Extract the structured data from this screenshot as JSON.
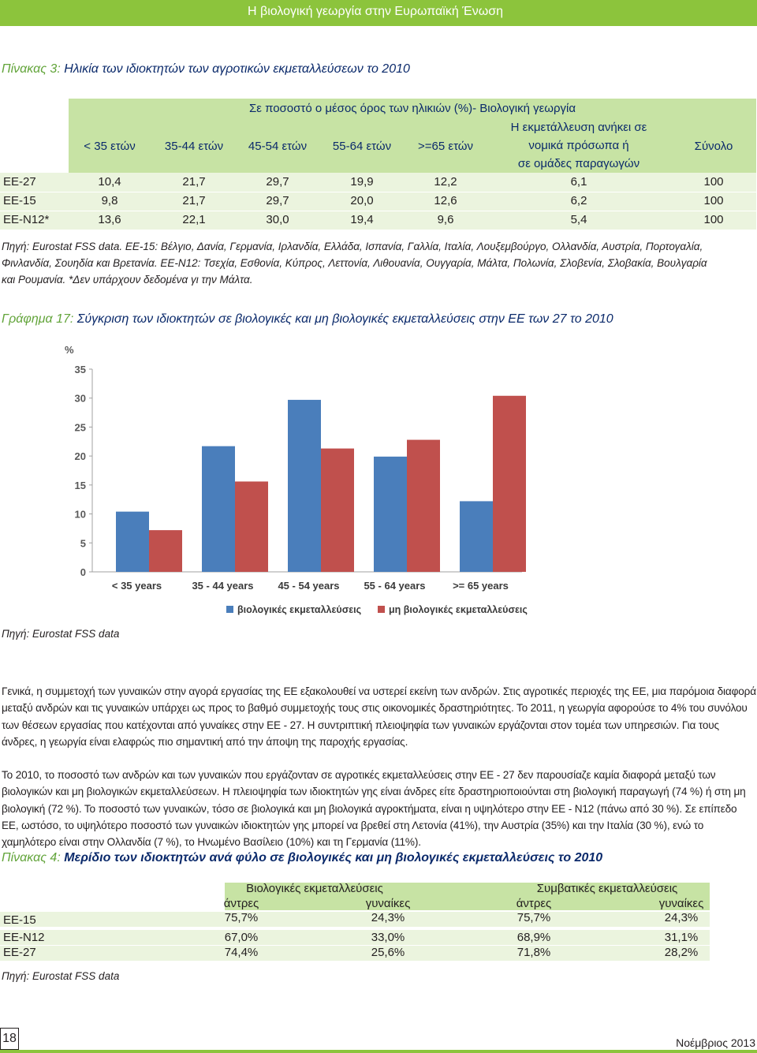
{
  "header": {
    "title": "Η βιολογική γεωργία στην Ευρωπαϊκή Ένωση"
  },
  "table3": {
    "caption_num": "Πίνακας 3:",
    "caption_text": "Ηλικία των ιδιοκτητών των αγροτικών εκμεταλλεύσεων το 2010",
    "group_header": "Σε ποσοστό ο μέσος όρος των ηλικιών (%)- Βιολογική γεωργία",
    "columns": [
      "< 35 ετών",
      "35-44 ετών",
      "45-54 ετών",
      "55-64 ετών",
      ">=65 ετών",
      "Η εκμετάλλευση ανήκει σε",
      "νομικά πρόσωπα ή",
      "σε ομάδες παραγωγών",
      "Σύνολο"
    ],
    "rows": [
      {
        "label": "ΕΕ-27",
        "cells": [
          "10,4",
          "21,7",
          "29,7",
          "19,9",
          "12,2",
          "6,1",
          "100"
        ]
      },
      {
        "label": "ΕΕ-15",
        "cells": [
          "9,8",
          "21,7",
          "29,7",
          "20,0",
          "12,6",
          "6,2",
          "100"
        ]
      },
      {
        "label": "ΕΕ-Ν12*",
        "cells": [
          "13,6",
          "22,1",
          "30,0",
          "19,4",
          "9,6",
          "5,4",
          "100"
        ]
      }
    ],
    "note_lines": [
      "Πηγή: Eurostat FSS data. ΕΕ-15: Βέλγιο, Δανία, Γερμανία, Ιρλανδία, Ελλάδα, Ισπανία, Γαλλία, Ιταλία, Λουξεμβούργο, Ολλανδία, Αυστρία, Πορτογαλία,",
      "Φινλανδία, Σουηδία και Βρετανία. ΕΕ-Ν12: Τσεχία, Εσθονία, Κύπρος, Λεττονία, Λιθουανία, Ουγγαρία, Μάλτα, Πολωνία, Σλοβενία, Σλοβακία, Βουλγαρία",
      "και Ρουμανία. *Δεν υπάρχουν δεδομένα γι την Μάλτα."
    ]
  },
  "chart": {
    "caption_num": "Γράφημα 17:",
    "caption_text": "Σύγκριση  των ιδιοκτητών σε βιολογικές και μη βιολογικές εκμεταλλεύσεις στην ΕΕ των 27 το 2010",
    "source": "Πηγή: Eurostat FSS data"
  },
  "chart_data": {
    "type": "bar",
    "ylabel": "%",
    "categories": [
      "< 35 years",
      "35 - 44 years",
      "45 - 54 years",
      "55 - 64 years",
      ">= 65 years"
    ],
    "series": [
      {
        "name": "βιολογικές εκμεταλλεύσεις",
        "color": "#4a7ebb",
        "values": [
          10.4,
          21.7,
          29.7,
          19.9,
          12.2
        ]
      },
      {
        "name": "μη βιολογικές εκμεταλλεύσεις",
        "color": "#c0504d",
        "values": [
          7.2,
          15.6,
          21.3,
          22.8,
          30.4
        ]
      }
    ],
    "ylim": [
      0,
      35
    ],
    "yticks": [
      "0",
      "5",
      "10",
      "15",
      "20",
      "25",
      "30",
      "35"
    ],
    "grid": false,
    "legend": "bottom"
  },
  "body_text": [
    "Γενικά, η συμμετοχή των γυναικών στην αγορά εργασίας της ΕΕ εξακολουθεί να υστερεί εκείνη των ανδρών. Στις αγροτικές περιοχές της ΕΕ, μια παρόμοια διαφορά μεταξύ ανδρών και τις γυναικών υπάρχει ως προς το βαθμό συμμετοχής τους στις οικονομικές δραστηριότητες. Το 2011, η γεωργία αφορούσε το 4% του συνόλου των θέσεων εργασίας που κατέχονται από γυναίκες στην ΕΕ - 27. Η συντριπτική πλειοψηφία των γυναικών εργάζονται στον τομέα των υπηρεσιών. Για τους άνδρες, η γεωργία είναι ελαφρώς πιο σημαντική από την άποψη της παροχής εργασίας.",
    "Το 2010, το ποσοστό των ανδρών και των γυναικών που εργάζονταν σε αγροτικές εκμεταλλεύσεις στην ΕΕ - 27 δεν παρουσίαζε καμία διαφορά μεταξύ των βιολογικών και μη βιολογικών εκμεταλλεύσεων. Η πλειοψηφία των ιδιοκτητών γης είναι άνδρες είτε δραστηριοποιούνται στη βιολογική παραγωγή (74 %) ή στη μη βιολογική (72 %). Το ποσοστό των γυναικών, τόσο σε βιολογικά και μη βιολογικά αγροκτήματα, είναι η υψηλότερο στην ΕΕ - Ν12 (πάνω από 30 %). Σε επίπεδο ΕΕ, ωστόσο, το υψηλότερο ποσοστό των γυναικών ιδιοκτητών γης μπορεί να βρεθεί στη Λετονία (41%), την Αυστρία (35%) και την Ιταλία (30 %), ενώ το χαμηλότερο είναι στην Ολλανδία (7 %), τo Ηνωμένο Βασίλειο (10%) και τη Γερμανία (11%)."
  ],
  "table4": {
    "caption_num": "Πίνακας 4:",
    "caption_text": "Μερίδιο των ιδιοκτητών ανά φύλο σε βιολογικές και μη βιολογικές εκμεταλλεύσεις το 2010",
    "group_headers": [
      "Βιολογικές εκμεταλλεύσεις",
      "Συμβατικές εκμεταλλεύσεις"
    ],
    "sub_headers": [
      "άντρες",
      "γυναίκες",
      "άντρες",
      "γυναίκες"
    ],
    "rows": [
      {
        "label": "ΕΕ-15",
        "cells": [
          "75,7%",
          "24,3%",
          "75,7%",
          "24,3%"
        ]
      },
      {
        "label": "ΕΕ-Ν12",
        "cells": [
          "67,0%",
          "33,0%",
          "68,9%",
          "31,1%"
        ]
      },
      {
        "label": "ΕΕ-27",
        "cells": [
          "74,4%",
          "25,6%",
          "71,8%",
          "28,2%"
        ]
      }
    ],
    "source": "Πηγή: Eurostat FSS data"
  },
  "footer": {
    "page": "18",
    "date": "Νοέμβριος 2013"
  }
}
